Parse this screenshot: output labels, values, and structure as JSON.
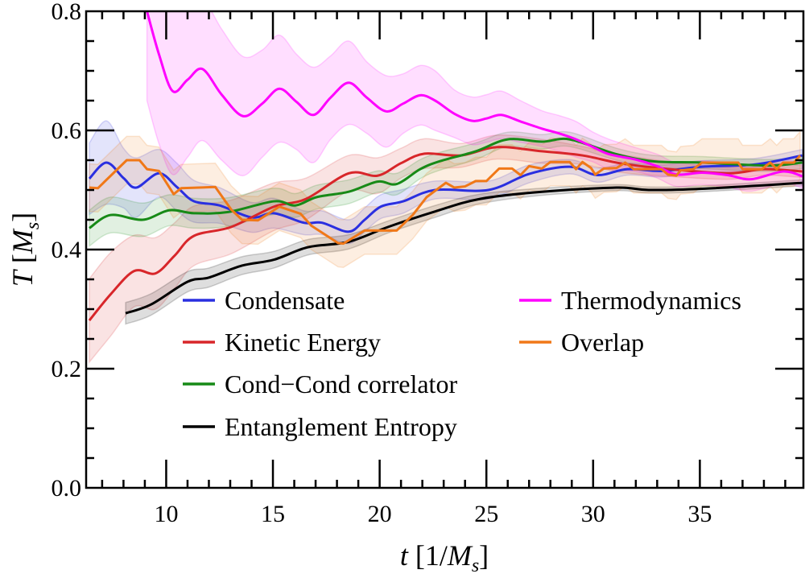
{
  "chart_data": {
    "type": "line",
    "title": "",
    "xlabel": {
      "var": "t",
      "open": " [1/",
      "unit": "M",
      "sub": "s",
      "close": "]"
    },
    "ylabel": {
      "var": "T",
      "open": " [",
      "unit": "M",
      "sub": "s",
      "close": "]"
    },
    "xlim": [
      6.25,
      39.85
    ],
    "ylim": [
      0.0,
      0.8
    ],
    "xticks": [
      10,
      15,
      20,
      25,
      30,
      35
    ],
    "xtick_labels": [
      "10",
      "15",
      "20",
      "25",
      "30",
      "35"
    ],
    "yticks": [
      0.0,
      0.2,
      0.4,
      0.6,
      0.8
    ],
    "ytick_labels": [
      "0.0",
      "0.2",
      "0.4",
      "0.6",
      "0.8"
    ],
    "grid": false,
    "legend_placement": "lower-center",
    "series": [
      {
        "name": "Condensate",
        "color": "#2a2fe0",
        "style": "smooth",
        "points": [
          [
            6.4,
            0.519
          ],
          [
            7.2,
            0.546
          ],
          [
            8.0,
            0.52
          ],
          [
            8.6,
            0.504
          ],
          [
            9.66,
            0.528
          ],
          [
            10.5,
            0.505
          ],
          [
            11.3,
            0.481
          ],
          [
            12.5,
            0.474
          ],
          [
            14.0,
            0.454
          ],
          [
            15.05,
            0.461
          ],
          [
            16.45,
            0.445
          ],
          [
            17.3,
            0.445
          ],
          [
            18.55,
            0.43
          ],
          [
            19.3,
            0.45
          ],
          [
            20.05,
            0.472
          ],
          [
            21.1,
            0.481
          ],
          [
            22.6,
            0.5
          ],
          [
            25.1,
            0.5
          ],
          [
            27.0,
            0.527
          ],
          [
            28.9,
            0.539
          ],
          [
            30.2,
            0.525
          ],
          [
            31.6,
            0.535
          ],
          [
            33.2,
            0.532
          ],
          [
            35.1,
            0.539
          ],
          [
            37.6,
            0.543
          ],
          [
            39.8,
            0.558
          ]
        ],
        "err": [
          0.06,
          0.07,
          0.05,
          0.05,
          0.04,
          0.04,
          0.035,
          0.03,
          0.025,
          0.025,
          0.02,
          0.02,
          0.02,
          0.02,
          0.02,
          0.02,
          0.015,
          0.015,
          0.015,
          0.012,
          0.012,
          0.01,
          0.01,
          0.01,
          0.01,
          0.01
        ]
      },
      {
        "name": "Kinetic Energy",
        "color": "#d8262a",
        "style": "smooth",
        "points": [
          [
            6.4,
            0.281
          ],
          [
            7.4,
            0.325
          ],
          [
            8.5,
            0.364
          ],
          [
            9.5,
            0.36
          ],
          [
            10.4,
            0.39
          ],
          [
            11.3,
            0.423
          ],
          [
            13.05,
            0.438
          ],
          [
            15.05,
            0.472
          ],
          [
            16.55,
            0.485
          ],
          [
            18.55,
            0.528
          ],
          [
            19.9,
            0.524
          ],
          [
            21.0,
            0.545
          ],
          [
            22.1,
            0.561
          ],
          [
            23.8,
            0.558
          ],
          [
            25.5,
            0.572
          ],
          [
            27.6,
            0.565
          ],
          [
            29.5,
            0.558
          ],
          [
            31.4,
            0.544
          ],
          [
            33.9,
            0.534
          ],
          [
            36.4,
            0.528
          ],
          [
            38.0,
            0.535
          ],
          [
            39.8,
            0.531
          ]
        ],
        "err": [
          0.07,
          0.07,
          0.06,
          0.06,
          0.055,
          0.05,
          0.045,
          0.04,
          0.035,
          0.03,
          0.03,
          0.025,
          0.025,
          0.02,
          0.02,
          0.02,
          0.015,
          0.015,
          0.012,
          0.01,
          0.01,
          0.01
        ]
      },
      {
        "name": "Cond−Cond correlator",
        "color": "#178a17",
        "style": "smooth",
        "points": [
          [
            6.4,
            0.436
          ],
          [
            7.4,
            0.458
          ],
          [
            8.9,
            0.45
          ],
          [
            10.15,
            0.466
          ],
          [
            11.3,
            0.461
          ],
          [
            12.9,
            0.463
          ],
          [
            15.05,
            0.481
          ],
          [
            16.05,
            0.474
          ],
          [
            17.05,
            0.488
          ],
          [
            18.55,
            0.497
          ],
          [
            19.9,
            0.514
          ],
          [
            20.8,
            0.51
          ],
          [
            21.9,
            0.535
          ],
          [
            22.8,
            0.548
          ],
          [
            24.5,
            0.565
          ],
          [
            26.0,
            0.585
          ],
          [
            27.6,
            0.581
          ],
          [
            28.9,
            0.585
          ],
          [
            31.1,
            0.56
          ],
          [
            32.85,
            0.548
          ],
          [
            35.1,
            0.546
          ],
          [
            38.2,
            0.541
          ],
          [
            39.8,
            0.546
          ]
        ],
        "err": [
          0.03,
          0.03,
          0.028,
          0.026,
          0.025,
          0.024,
          0.022,
          0.02,
          0.02,
          0.02,
          0.018,
          0.018,
          0.016,
          0.015,
          0.014,
          0.012,
          0.012,
          0.012,
          0.01,
          0.01,
          0.01,
          0.01,
          0.01
        ]
      },
      {
        "name": "Entanglement Entropy",
        "color": "#000000",
        "style": "smooth",
        "points": [
          [
            8.1,
            0.293
          ],
          [
            9.3,
            0.308
          ],
          [
            11.0,
            0.346
          ],
          [
            12.0,
            0.353
          ],
          [
            13.55,
            0.373
          ],
          [
            15.05,
            0.383
          ],
          [
            16.65,
            0.404
          ],
          [
            18.55,
            0.413
          ],
          [
            20.4,
            0.438
          ],
          [
            22.6,
            0.464
          ],
          [
            24.7,
            0.485
          ],
          [
            27.6,
            0.497
          ],
          [
            31.1,
            0.504
          ],
          [
            32.6,
            0.5
          ],
          [
            35.1,
            0.502
          ],
          [
            39.8,
            0.512
          ]
        ],
        "err": [
          0.018,
          0.018,
          0.017,
          0.016,
          0.015,
          0.014,
          0.013,
          0.012,
          0.01,
          0.01,
          0.008,
          0.006,
          0.005,
          0.005,
          0.005,
          0.005
        ]
      },
      {
        "name": "Thermodynamics",
        "color": "#ff00ff",
        "style": "smooth",
        "points": [
          [
            9.1,
            0.8
          ],
          [
            9.66,
            0.728
          ],
          [
            10.3,
            0.666
          ],
          [
            11.0,
            0.685
          ],
          [
            11.7,
            0.703
          ],
          [
            12.6,
            0.66
          ],
          [
            13.6,
            0.624
          ],
          [
            14.5,
            0.645
          ],
          [
            15.3,
            0.67
          ],
          [
            16.1,
            0.648
          ],
          [
            16.9,
            0.626
          ],
          [
            17.7,
            0.655
          ],
          [
            18.55,
            0.68
          ],
          [
            19.4,
            0.655
          ],
          [
            20.3,
            0.632
          ],
          [
            21.1,
            0.645
          ],
          [
            21.9,
            0.659
          ],
          [
            22.6,
            0.65
          ],
          [
            23.5,
            0.628
          ],
          [
            24.35,
            0.616
          ],
          [
            25.0,
            0.62
          ],
          [
            25.7,
            0.626
          ],
          [
            26.6,
            0.615
          ],
          [
            27.6,
            0.603
          ],
          [
            28.4,
            0.595
          ],
          [
            29.2,
            0.585
          ],
          [
            30.0,
            0.572
          ],
          [
            30.75,
            0.56
          ],
          [
            32.0,
            0.551
          ],
          [
            33.0,
            0.54
          ],
          [
            33.9,
            0.526
          ],
          [
            35.1,
            0.529
          ],
          [
            36.3,
            0.525
          ],
          [
            37.4,
            0.518
          ],
          [
            38.9,
            0.531
          ],
          [
            39.8,
            0.523
          ]
        ],
        "err": [
          0.15,
          0.15,
          0.14,
          0.13,
          0.12,
          0.11,
          0.1,
          0.09,
          0.09,
          0.08,
          0.08,
          0.07,
          0.07,
          0.06,
          0.06,
          0.05,
          0.05,
          0.05,
          0.04,
          0.04,
          0.04,
          0.04,
          0.035,
          0.03,
          0.03,
          0.03,
          0.025,
          0.025,
          0.02,
          0.02,
          0.02,
          0.02,
          0.02,
          0.02,
          0.02,
          0.02
        ]
      },
      {
        "name": "Overlap",
        "color": "#f07818",
        "style": "linear",
        "points": [
          [
            6.4,
            0.504
          ],
          [
            6.8,
            0.503
          ],
          [
            8.15,
            0.55
          ],
          [
            8.75,
            0.55
          ],
          [
            9.1,
            0.535
          ],
          [
            9.66,
            0.532
          ],
          [
            10.35,
            0.493
          ],
          [
            10.7,
            0.503
          ],
          [
            12.3,
            0.505
          ],
          [
            13.05,
            0.467
          ],
          [
            13.55,
            0.45
          ],
          [
            14.3,
            0.449
          ],
          [
            15.3,
            0.472
          ],
          [
            16.3,
            0.46
          ],
          [
            16.8,
            0.44
          ],
          [
            18.05,
            0.411
          ],
          [
            18.3,
            0.41
          ],
          [
            19.3,
            0.432
          ],
          [
            20.8,
            0.432
          ],
          [
            21.55,
            0.458
          ],
          [
            22.2,
            0.488
          ],
          [
            23.1,
            0.512
          ],
          [
            23.5,
            0.504
          ],
          [
            24.0,
            0.506
          ],
          [
            24.5,
            0.515
          ],
          [
            25.0,
            0.515
          ],
          [
            25.6,
            0.536
          ],
          [
            26.2,
            0.536
          ],
          [
            26.6,
            0.525
          ],
          [
            27.0,
            0.54
          ],
          [
            27.6,
            0.536
          ],
          [
            28.0,
            0.547
          ],
          [
            28.9,
            0.547
          ],
          [
            29.2,
            0.535
          ],
          [
            29.5,
            0.547
          ],
          [
            29.9,
            0.537
          ],
          [
            30.1,
            0.526
          ],
          [
            30.5,
            0.536
          ],
          [
            31.1,
            0.537
          ],
          [
            31.5,
            0.546
          ],
          [
            31.9,
            0.535
          ],
          [
            33.2,
            0.535
          ],
          [
            33.5,
            0.526
          ],
          [
            33.9,
            0.524
          ],
          [
            34.1,
            0.533
          ],
          [
            34.7,
            0.535
          ],
          [
            35.1,
            0.546
          ],
          [
            36.8,
            0.546
          ],
          [
            37.0,
            0.535
          ],
          [
            37.9,
            0.535
          ],
          [
            38.3,
            0.546
          ],
          [
            38.6,
            0.535
          ],
          [
            38.9,
            0.546
          ],
          [
            39.4,
            0.546
          ],
          [
            39.7,
            0.558
          ]
        ],
        "err": 0.04
      }
    ]
  }
}
